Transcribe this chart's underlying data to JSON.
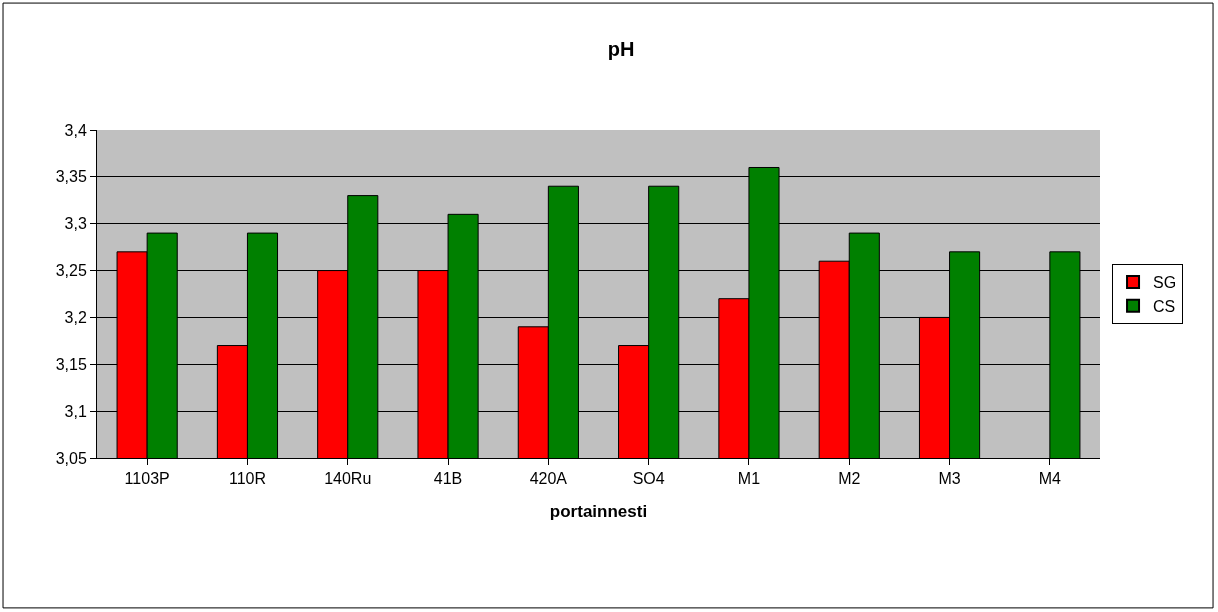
{
  "chart_data": {
    "type": "bar",
    "title": "pH",
    "xlabel": "portainnesti",
    "categories": [
      "1103P",
      "110R",
      "140Ru",
      "41B",
      "420A",
      "SO4",
      "M1",
      "M2",
      "M3",
      "M4"
    ],
    "series": [
      {
        "name": "SG",
        "color": "#ff0000",
        "values": [
          3.27,
          3.17,
          3.25,
          3.25,
          3.19,
          3.17,
          3.22,
          3.26,
          3.2,
          null
        ]
      },
      {
        "name": "CS",
        "color": "#008000",
        "values": [
          3.29,
          3.29,
          3.33,
          3.31,
          3.34,
          3.34,
          3.36,
          3.29,
          3.27,
          3.27
        ]
      }
    ],
    "ylim": [
      3.05,
      3.4
    ],
    "yticks": [
      {
        "value": 3.05,
        "label": "3,05"
      },
      {
        "value": 3.1,
        "label": "3,1"
      },
      {
        "value": 3.15,
        "label": "3,15"
      },
      {
        "value": 3.2,
        "label": "3,2"
      },
      {
        "value": 3.25,
        "label": "3,25"
      },
      {
        "value": 3.3,
        "label": "3,3"
      },
      {
        "value": 3.35,
        "label": "3,35"
      },
      {
        "value": 3.4,
        "label": "3,4"
      }
    ],
    "grid": "y",
    "legend": "right"
  }
}
